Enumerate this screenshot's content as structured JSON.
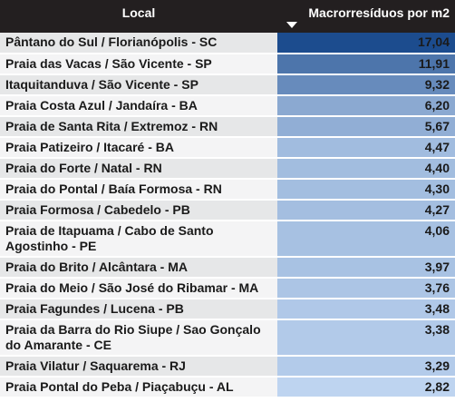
{
  "table": {
    "header": [
      "Local",
      "Macrorresíduos por m2"
    ],
    "rows": [
      [
        "Pântano do Sul / Florianópolis - SC",
        "17,04"
      ],
      [
        "Praia das Vacas / São Vicente - SP",
        "11,91"
      ],
      [
        "Itaquitanduva / São Vicente - SP",
        "9,32"
      ],
      [
        "Praia Costa Azul / Jandaíra - BA",
        "6,20"
      ],
      [
        "Praia de Santa Rita / Extremoz - RN",
        "5,67"
      ],
      [
        "Praia Patizeiro / Itacaré - BA",
        "4,47"
      ],
      [
        "Praia do Forte / Natal - RN",
        "4,40"
      ],
      [
        "Praia do Pontal / Baía Formosa - RN",
        "4,30"
      ],
      [
        "Praia Formosa / Cabedelo - PB",
        "4,27"
      ],
      [
        "Praia de Itapuama / Cabo de Santo Agostinho - PE",
        "4,06"
      ],
      [
        "Praia do Brito / Alcântara - MA",
        "3,97"
      ],
      [
        "Praia do Meio / São José do Ribamar - MA",
        "3,76"
      ],
      [
        "Praia Fagundes / Lucena - PB",
        "3,48"
      ],
      [
        "Praia da Barra do Rio Siupe / Sao Gonçalo do Amarante - CE",
        "3,38"
      ],
      [
        "Praia Vilatur / Saquarema - RJ",
        "3,29"
      ],
      [
        "Praia Pontal do Peba / Piaçabuçu - AL",
        "2,82"
      ]
    ]
  }
}
